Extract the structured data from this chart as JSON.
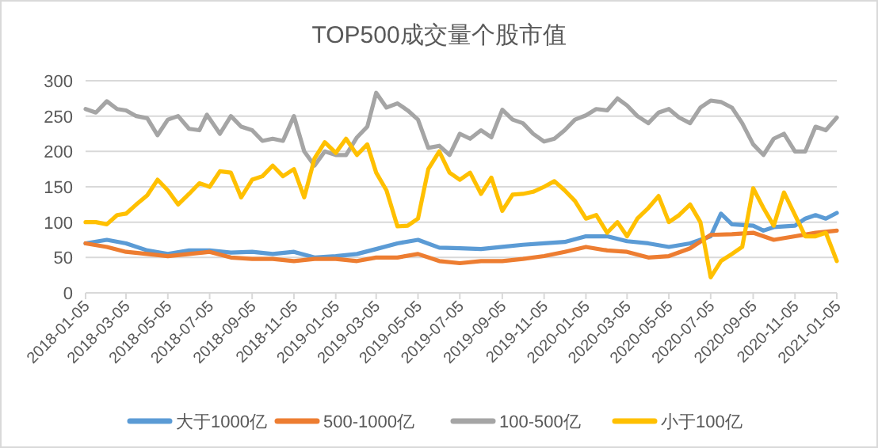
{
  "chart_data": {
    "type": "line",
    "title": "TOP500成交量个股市值",
    "ylim": [
      0,
      300
    ],
    "yticks": [
      0,
      50,
      100,
      150,
      200,
      250,
      300
    ],
    "grid": "y",
    "legend": "bottom",
    "line_style": "solid",
    "marker": "none",
    "xlim": [
      "2018-01-05",
      "2021-01-05"
    ],
    "xticks": [
      "2018-01-05",
      "2018-03-05",
      "2018-05-05",
      "2018-07-05",
      "2018-09-05",
      "2018-11-05",
      "2019-01-05",
      "2019-03-05",
      "2019-05-05",
      "2019-07-05",
      "2019-09-05",
      "2019-11-05",
      "2020-01-05",
      "2020-03-05",
      "2020-05-05",
      "2020-07-05",
      "2020-09-05",
      "2020-11-05",
      "2021-01-05"
    ],
    "series": [
      {
        "name": "大于1000亿",
        "color": "#5b9bd5",
        "x": [
          "2018-01-05",
          "2018-02-05",
          "2018-03-05",
          "2018-04-05",
          "2018-05-05",
          "2018-06-05",
          "2018-07-05",
          "2018-08-05",
          "2018-09-05",
          "2018-10-05",
          "2018-11-05",
          "2018-12-05",
          "2019-01-05",
          "2019-02-05",
          "2019-03-05",
          "2019-04-05",
          "2019-05-05",
          "2019-06-05",
          "2019-07-05",
          "2019-08-05",
          "2019-09-05",
          "2019-10-05",
          "2019-11-05",
          "2019-12-05",
          "2020-01-05",
          "2020-02-05",
          "2020-03-05",
          "2020-04-05",
          "2020-05-05",
          "2020-06-05",
          "2020-07-05",
          "2020-07-20",
          "2020-08-05",
          "2020-09-05",
          "2020-09-20",
          "2020-10-05",
          "2020-11-05",
          "2020-11-20",
          "2020-12-05",
          "2020-12-20",
          "2021-01-05"
        ],
        "values": [
          70,
          75,
          70,
          60,
          55,
          60,
          60,
          57,
          58,
          55,
          58,
          50,
          52,
          55,
          62,
          70,
          75,
          64,
          63,
          62,
          65,
          68,
          70,
          72,
          80,
          80,
          73,
          70,
          65,
          70,
          80,
          112,
          97,
          95,
          88,
          93,
          95,
          105,
          110,
          105,
          113
        ]
      },
      {
        "name": "500-1000亿",
        "color": "#ed7d31",
        "x": [
          "2018-01-05",
          "2018-02-05",
          "2018-03-05",
          "2018-04-05",
          "2018-05-05",
          "2018-06-05",
          "2018-07-05",
          "2018-08-05",
          "2018-09-05",
          "2018-10-05",
          "2018-11-05",
          "2018-12-05",
          "2019-01-05",
          "2019-02-05",
          "2019-03-05",
          "2019-04-05",
          "2019-05-05",
          "2019-06-05",
          "2019-07-05",
          "2019-08-05",
          "2019-09-05",
          "2019-10-05",
          "2019-11-05",
          "2019-12-05",
          "2020-01-05",
          "2020-02-05",
          "2020-03-05",
          "2020-04-05",
          "2020-05-05",
          "2020-06-05",
          "2020-07-05",
          "2020-08-05",
          "2020-09-05",
          "2020-10-05",
          "2020-11-05",
          "2020-12-05",
          "2021-01-05"
        ],
        "values": [
          70,
          65,
          58,
          55,
          52,
          55,
          58,
          50,
          48,
          48,
          45,
          48,
          48,
          45,
          50,
          50,
          55,
          45,
          42,
          45,
          45,
          48,
          52,
          58,
          65,
          60,
          58,
          50,
          52,
          63,
          82,
          83,
          85,
          75,
          80,
          85,
          88
        ]
      },
      {
        "name": "100-500亿",
        "color": "#a5a5a5",
        "x": [
          "2018-01-05",
          "2018-01-20",
          "2018-02-05",
          "2018-02-20",
          "2018-03-05",
          "2018-03-20",
          "2018-04-05",
          "2018-04-20",
          "2018-05-05",
          "2018-05-20",
          "2018-06-05",
          "2018-06-20",
          "2018-07-01",
          "2018-07-20",
          "2018-08-05",
          "2018-08-20",
          "2018-09-05",
          "2018-09-20",
          "2018-10-05",
          "2018-10-20",
          "2018-11-05",
          "2018-11-20",
          "2018-12-05",
          "2018-12-20",
          "2019-01-05",
          "2019-01-20",
          "2019-02-05",
          "2019-02-20",
          "2019-03-05",
          "2019-03-20",
          "2019-04-05",
          "2019-04-20",
          "2019-05-05",
          "2019-05-20",
          "2019-06-05",
          "2019-06-20",
          "2019-07-05",
          "2019-07-20",
          "2019-08-05",
          "2019-08-20",
          "2019-09-05",
          "2019-09-20",
          "2019-10-05",
          "2019-10-20",
          "2019-11-05",
          "2019-11-20",
          "2019-12-05",
          "2019-12-20",
          "2020-01-05",
          "2020-01-20",
          "2020-02-05",
          "2020-02-20",
          "2020-03-05",
          "2020-03-20",
          "2020-04-05",
          "2020-04-20",
          "2020-05-05",
          "2020-05-20",
          "2020-06-05",
          "2020-06-20",
          "2020-07-05",
          "2020-07-20",
          "2020-08-05",
          "2020-08-20",
          "2020-09-05",
          "2020-09-20",
          "2020-10-05",
          "2020-10-20",
          "2020-11-05",
          "2020-11-20",
          "2020-12-05",
          "2020-12-20",
          "2021-01-05"
        ],
        "values": [
          260,
          255,
          271,
          260,
          258,
          250,
          247,
          223,
          245,
          250,
          232,
          230,
          252,
          225,
          250,
          235,
          230,
          215,
          218,
          215,
          250,
          200,
          180,
          200,
          195,
          195,
          220,
          235,
          283,
          262,
          268,
          258,
          245,
          205,
          208,
          195,
          225,
          218,
          230,
          220,
          259,
          245,
          240,
          225,
          214,
          218,
          230,
          245,
          251,
          260,
          258,
          275,
          265,
          250,
          240,
          255,
          260,
          248,
          240,
          262,
          272,
          270,
          262,
          240,
          210,
          195,
          218,
          225,
          200,
          200,
          235,
          230,
          248
        ]
      },
      {
        "name": "小于100亿",
        "color": "#ffc000",
        "x": [
          "2018-01-05",
          "2018-01-20",
          "2018-02-05",
          "2018-02-20",
          "2018-03-05",
          "2018-03-20",
          "2018-04-05",
          "2018-04-20",
          "2018-05-05",
          "2018-05-20",
          "2018-06-05",
          "2018-06-20",
          "2018-07-05",
          "2018-07-20",
          "2018-08-05",
          "2018-08-20",
          "2018-09-05",
          "2018-09-20",
          "2018-10-05",
          "2018-10-20",
          "2018-11-05",
          "2018-11-20",
          "2018-12-05",
          "2018-12-20",
          "2019-01-05",
          "2019-01-20",
          "2019-02-05",
          "2019-02-20",
          "2019-03-05",
          "2019-03-20",
          "2019-04-05",
          "2019-04-20",
          "2019-05-05",
          "2019-05-20",
          "2019-06-05",
          "2019-06-20",
          "2019-07-05",
          "2019-07-20",
          "2019-08-05",
          "2019-08-20",
          "2019-09-05",
          "2019-09-20",
          "2019-10-05",
          "2019-10-20",
          "2019-11-05",
          "2019-11-20",
          "2019-12-05",
          "2019-12-20",
          "2020-01-05",
          "2020-01-20",
          "2020-02-05",
          "2020-02-20",
          "2020-03-05",
          "2020-03-20",
          "2020-04-05",
          "2020-04-20",
          "2020-05-05",
          "2020-05-20",
          "2020-06-05",
          "2020-06-20",
          "2020-07-05",
          "2020-07-20",
          "2020-08-05",
          "2020-08-20",
          "2020-09-05",
          "2020-09-20",
          "2020-10-05",
          "2020-10-20",
          "2020-11-05",
          "2020-11-20",
          "2020-12-05",
          "2020-12-20",
          "2021-01-05"
        ],
        "values": [
          100,
          100,
          97,
          110,
          112,
          125,
          138,
          160,
          145,
          125,
          140,
          155,
          150,
          172,
          170,
          135,
          160,
          165,
          180,
          165,
          175,
          135,
          190,
          213,
          198,
          218,
          195,
          210,
          170,
          145,
          94,
          95,
          105,
          175,
          200,
          170,
          160,
          170,
          140,
          163,
          116,
          139,
          140,
          143,
          150,
          158,
          145,
          130,
          105,
          110,
          85,
          100,
          80,
          105,
          120,
          137,
          100,
          110,
          125,
          100,
          22,
          45,
          55,
          65,
          148,
          120,
          95,
          142,
          110,
          80,
          80,
          85,
          45
        ]
      }
    ]
  }
}
